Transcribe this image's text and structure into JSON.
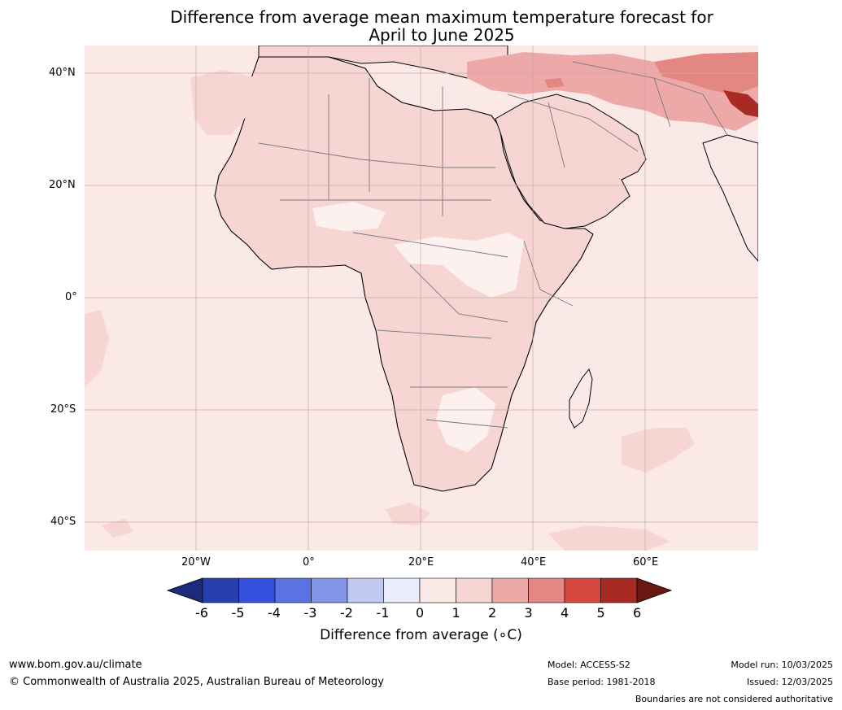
{
  "title": {
    "line1": "Difference from average mean maximum temperature forecast for",
    "line2": "April to June 2025"
  },
  "map": {
    "lat_labels": [
      "40°N",
      "20°N",
      "0°",
      "20°S",
      "40°S"
    ],
    "lon_labels": [
      "20°W",
      "0°",
      "20°E",
      "40°E",
      "60°E"
    ],
    "colors": {
      "ocean_background": "#fbe9e7",
      "anomaly_1_2": "#f6d5d2",
      "anomaly_2_3": "#eda9a7",
      "anomaly_3_4": "#e48783",
      "anomaly_5_6": "#a82a25",
      "anomaly_0_1_land": "#fdf1ef"
    }
  },
  "colorbar": {
    "ticks": [
      "-6",
      "-5",
      "-4",
      "-3",
      "-2",
      "-1",
      "0",
      "1",
      "2",
      "3",
      "4",
      "5",
      "6"
    ],
    "colors": [
      "#1b2a7c",
      "#2a3faf",
      "#3550dd",
      "#5a72e2",
      "#8496e8",
      "#c1c9f2",
      "#e9ecfa",
      "#fbe9e7",
      "#f6d5d2",
      "#eda9a7",
      "#e48783",
      "#d6483f",
      "#a82a25",
      "#6b1712"
    ],
    "label": "Difference from average (∘C)"
  },
  "footer": {
    "website": "www.bom.gov.au/climate",
    "copyright": "© Commonwealth of Australia 2025, Australian Bureau of Meteorology",
    "model": "Model: ACCESS-S2",
    "base_period": "Base period: 1981-2018",
    "model_run": "Model run: 10/03/2025",
    "issued": "Issued: 12/03/2025",
    "disclaimer": "Boundaries are not considered authoritative"
  }
}
